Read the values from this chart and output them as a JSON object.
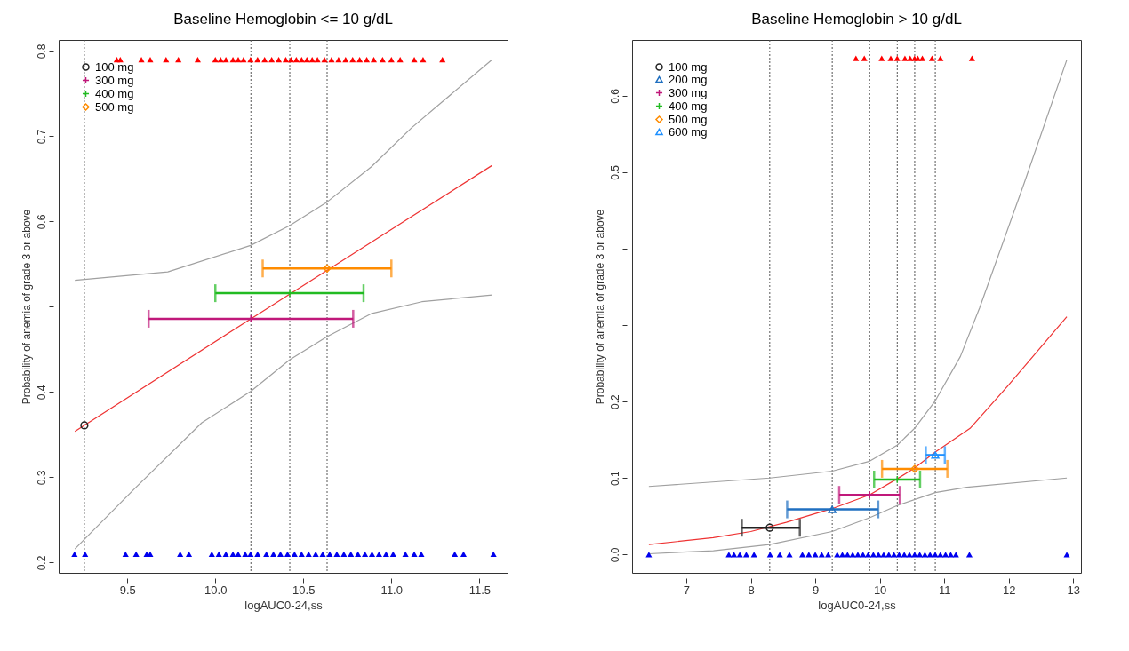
{
  "chart_data": [
    {
      "type": "line",
      "title": "Baseline Hemoglobin <= 10 g/dL",
      "xlabel": "logAUC0-24,ss",
      "ylabel": "Probability of anemia of grade 3 or above",
      "xlim": [
        9.11,
        11.66
      ],
      "ylim": [
        0.188,
        0.813
      ],
      "xticks": [
        9.5,
        {
          "value": 10,
          "label": "10.0"
        },
        10.5,
        {
          "value": 11,
          "label": "11.0"
        },
        11.5
      ],
      "yticks": [
        0.2,
        0.3,
        0.4,
        {
          "value": 0.5,
          "label": null
        },
        0.6,
        0.7,
        0.8
      ],
      "grid": false,
      "legend": "top left",
      "ref_lines": [
        {
          "axis": "x",
          "value": 9.256,
          "color": "#555555",
          "line_style": "dotted"
        },
        {
          "axis": "x",
          "value": 10.202,
          "color": "#555555",
          "line_style": "dotted"
        },
        {
          "axis": "x",
          "value": 10.423,
          "color": "#555555",
          "line_style": "dotted"
        },
        {
          "axis": "x",
          "value": 10.635,
          "color": "#555555",
          "line_style": "dotted"
        }
      ],
      "series": [
        {
          "type": "line",
          "color": "#a0a0a0",
          "x": [
            9.202,
            9.73,
            10.2,
            10.42,
            10.635,
            10.885,
            11.115,
            11.573
          ],
          "values": [
            0.531,
            0.541,
            0.572,
            0.595,
            0.623,
            0.664,
            0.71,
            0.79
          ]
        },
        {
          "type": "line",
          "color": "#a0a0a0",
          "x": [
            9.202,
            9.538,
            9.923,
            10.202,
            10.423,
            10.635,
            10.885,
            11.173,
            11.573
          ],
          "values": [
            0.216,
            0.286,
            0.364,
            0.401,
            0.438,
            0.465,
            0.492,
            0.506,
            0.514
          ]
        },
        {
          "type": "line",
          "color": "#ee3333",
          "x": [
            9.202,
            10.202,
            11.573
          ],
          "values": [
            0.354,
            0.486,
            0.666
          ]
        },
        {
          "type": "scatter",
          "color": "#ff0000",
          "marker": "triangle",
          "x": [
            9.44,
            9.46,
            9.58,
            9.63,
            9.72,
            9.79,
            9.9,
            10.0,
            10.03,
            10.06,
            10.1,
            10.13,
            10.16,
            10.2,
            10.24,
            10.28,
            10.32,
            10.36,
            10.4,
            10.43,
            10.46,
            10.49,
            10.52,
            10.55,
            10.58,
            10.62,
            10.66,
            10.7,
            10.74,
            10.78,
            10.82,
            10.86,
            10.9,
            10.95,
            11.0,
            11.05,
            11.13,
            11.18,
            11.29
          ],
          "values": [
            0.79,
            0.79,
            0.79,
            0.79,
            0.79,
            0.79,
            0.79,
            0.79,
            0.79,
            0.79,
            0.79,
            0.79,
            0.79,
            0.79,
            0.79,
            0.79,
            0.79,
            0.79,
            0.79,
            0.79,
            0.79,
            0.79,
            0.79,
            0.79,
            0.79,
            0.79,
            0.79,
            0.79,
            0.79,
            0.79,
            0.79,
            0.79,
            0.79,
            0.79,
            0.79,
            0.79,
            0.79,
            0.79,
            0.79
          ]
        },
        {
          "type": "scatter",
          "color": "#0000ee",
          "marker": "triangle",
          "x": [
            9.2,
            9.26,
            9.49,
            9.55,
            9.61,
            9.63,
            9.8,
            9.85,
            9.98,
            10.02,
            10.06,
            10.1,
            10.13,
            10.17,
            10.2,
            10.24,
            10.29,
            10.33,
            10.37,
            10.41,
            10.45,
            10.49,
            10.53,
            10.57,
            10.61,
            10.65,
            10.69,
            10.73,
            10.77,
            10.81,
            10.85,
            10.89,
            10.93,
            10.97,
            11.01,
            11.08,
            11.13,
            11.17,
            11.36,
            11.41,
            11.58
          ],
          "values": [
            0.21,
            0.21,
            0.21,
            0.21,
            0.21,
            0.21,
            0.21,
            0.21,
            0.21,
            0.21,
            0.21,
            0.21,
            0.21,
            0.21,
            0.21,
            0.21,
            0.21,
            0.21,
            0.21,
            0.21,
            0.21,
            0.21,
            0.21,
            0.21,
            0.21,
            0.21,
            0.21,
            0.21,
            0.21,
            0.21,
            0.21,
            0.21,
            0.21,
            0.21,
            0.21,
            0.21,
            0.21,
            0.21,
            0.21,
            0.21,
            0.21
          ]
        },
        {
          "type": "scatter",
          "name": "100 mg",
          "color": "#222222",
          "marker": "circle",
          "x": [
            9.256
          ],
          "values": [
            0.361
          ]
        },
        {
          "type": "scatter",
          "name": "300 mg",
          "color": "#c0187a",
          "marker": "cross",
          "x": [
            10.202
          ],
          "values": [
            0.486
          ],
          "xerrors": [
            [
              9.621,
              10.783
            ]
          ]
        },
        {
          "type": "scatter",
          "name": "400 mg",
          "color": "#22bb22",
          "marker": "cross",
          "x": [
            10.423
          ],
          "values": [
            0.516
          ],
          "xerrors": [
            [
              10.0,
              10.842
            ]
          ]
        },
        {
          "type": "scatter",
          "name": "500 mg",
          "color": "#ff8c00",
          "marker": "diamond",
          "x": [
            10.635
          ],
          "values": [
            0.545
          ],
          "xerrors": [
            [
              10.269,
              11.0
            ]
          ]
        }
      ]
    },
    {
      "type": "line",
      "title": "Baseline Hemoglobin  > 10 g/dL",
      "xlabel": "logAUC0-24,ss",
      "ylabel": "Probability of anemia of grade 3 or above",
      "xlim": [
        6.16,
        13.12
      ],
      "ylim": [
        -0.024,
        0.673
      ],
      "xticks": [
        7,
        8,
        9,
        10,
        11,
        12,
        13
      ],
      "yticks": [
        {
          "value": 0,
          "label": "0.0"
        },
        0.1,
        0.2,
        {
          "value": 0.3,
          "label": null
        },
        {
          "value": 0.4,
          "label": null
        },
        0.5,
        0.6
      ],
      "grid": false,
      "legend": "top left",
      "ref_lines": [
        {
          "axis": "x",
          "value": 8.294,
          "color": "#555555",
          "line_style": "dotted"
        },
        {
          "axis": "x",
          "value": 9.263,
          "color": "#555555",
          "line_style": "dotted"
        },
        {
          "axis": "x",
          "value": 9.843,
          "color": "#555555",
          "line_style": "dotted"
        },
        {
          "axis": "x",
          "value": 10.271,
          "color": "#555555",
          "line_style": "dotted"
        },
        {
          "axis": "x",
          "value": 10.542,
          "color": "#555555",
          "line_style": "dotted"
        },
        {
          "axis": "x",
          "value": 10.861,
          "color": "#555555",
          "line_style": "dotted"
        }
      ],
      "series": [
        {
          "type": "line",
          "color": "#a0a0a0",
          "x": [
            6.42,
            8.294,
            9.263,
            9.843,
            10.27,
            10.54,
            10.86,
            11.25,
            11.55,
            12.24,
            12.9
          ],
          "values": [
            0.089,
            0.1,
            0.109,
            0.122,
            0.143,
            0.165,
            0.201,
            0.259,
            0.323,
            0.486,
            0.647
          ]
        },
        {
          "type": "line",
          "color": "#a0a0a0",
          "x": [
            6.42,
            7.42,
            8.29,
            9.26,
            9.84,
            10.27,
            10.86,
            11.35,
            12.9
          ],
          "values": [
            0.001,
            0.005,
            0.013,
            0.03,
            0.048,
            0.064,
            0.081,
            0.088,
            0.1
          ]
        },
        {
          "type": "line",
          "color": "#ee3333",
          "x": [
            6.42,
            7.418,
            8.0,
            8.55,
            9.26,
            9.84,
            10.27,
            10.54,
            10.86,
            11.4,
            11.99,
            12.9
          ],
          "values": [
            0.013,
            0.022,
            0.03,
            0.042,
            0.06,
            0.078,
            0.099,
            0.113,
            0.134,
            0.165,
            0.221,
            0.311
          ]
        },
        {
          "type": "scatter",
          "color": "#ff0000",
          "marker": "triangle",
          "x": [
            9.63,
            9.76,
            10.03,
            10.17,
            10.27,
            10.39,
            10.47,
            10.54,
            10.59,
            10.66,
            10.81,
            10.94,
            11.43
          ],
          "values": [
            0.649,
            0.649,
            0.649,
            0.649,
            0.649,
            0.649,
            0.649,
            0.649,
            0.649,
            0.649,
            0.649,
            0.649,
            0.649
          ]
        },
        {
          "type": "scatter",
          "color": "#0000ee",
          "marker": "triangle",
          "x": [
            6.42,
            7.66,
            7.74,
            7.83,
            7.93,
            8.05,
            8.3,
            8.45,
            8.6,
            8.8,
            8.9,
            9.0,
            9.1,
            9.2,
            9.34,
            9.42,
            9.5,
            9.58,
            9.66,
            9.74,
            9.82,
            9.9,
            9.98,
            10.06,
            10.14,
            10.22,
            10.3,
            10.38,
            10.46,
            10.54,
            10.62,
            10.7,
            10.78,
            10.86,
            10.94,
            11.02,
            11.1,
            11.18,
            11.39,
            12.9
          ],
          "values": [
            0.0,
            0.0,
            0.0,
            0.0,
            0.0,
            0.0,
            0.0,
            0.0,
            0.0,
            0.0,
            0.0,
            0.0,
            0.0,
            0.0,
            0.0,
            0.0,
            0.0,
            0.0,
            0.0,
            0.0,
            0.0,
            0.0,
            0.0,
            0.0,
            0.0,
            0.0,
            0.0,
            0.0,
            0.0,
            0.0,
            0.0,
            0.0,
            0.0,
            0.0,
            0.0,
            0.0,
            0.0,
            0.0,
            0.0,
            0.0
          ]
        },
        {
          "type": "scatter",
          "name": "100 mg",
          "color": "#222222",
          "marker": "circle",
          "x": [
            8.294
          ],
          "values": [
            0.035
          ],
          "xerrors": [
            [
              7.861,
              8.761
            ]
          ]
        },
        {
          "type": "scatter",
          "name": "200 mg",
          "color": "#1f6fc0",
          "marker": "triangle",
          "x": [
            9.263
          ],
          "values": [
            0.059
          ],
          "xerrors": [
            [
              8.564,
              9.976
            ]
          ]
        },
        {
          "type": "scatter",
          "name": "300 mg",
          "color": "#c0187a",
          "marker": "cross",
          "x": [
            9.843
          ],
          "values": [
            0.078
          ],
          "xerrors": [
            [
              9.371,
              10.31
            ]
          ]
        },
        {
          "type": "scatter",
          "name": "400 mg",
          "color": "#22bb22",
          "marker": "cross",
          "x": [
            10.271
          ],
          "values": [
            0.098
          ],
          "xerrors": [
            [
              9.912,
              10.625
            ]
          ]
        },
        {
          "type": "scatter",
          "name": "500 mg",
          "color": "#ff8c00",
          "marker": "diamond",
          "x": [
            10.542
          ],
          "values": [
            0.112
          ],
          "xerrors": [
            [
              10.035,
              11.048
            ]
          ]
        },
        {
          "type": "scatter",
          "name": "600 mg",
          "color": "#1e90ff",
          "marker": "triangle",
          "x": [
            10.861
          ],
          "values": [
            0.13
          ],
          "xerrors": [
            [
              10.714,
              11.009
            ]
          ]
        }
      ]
    }
  ]
}
